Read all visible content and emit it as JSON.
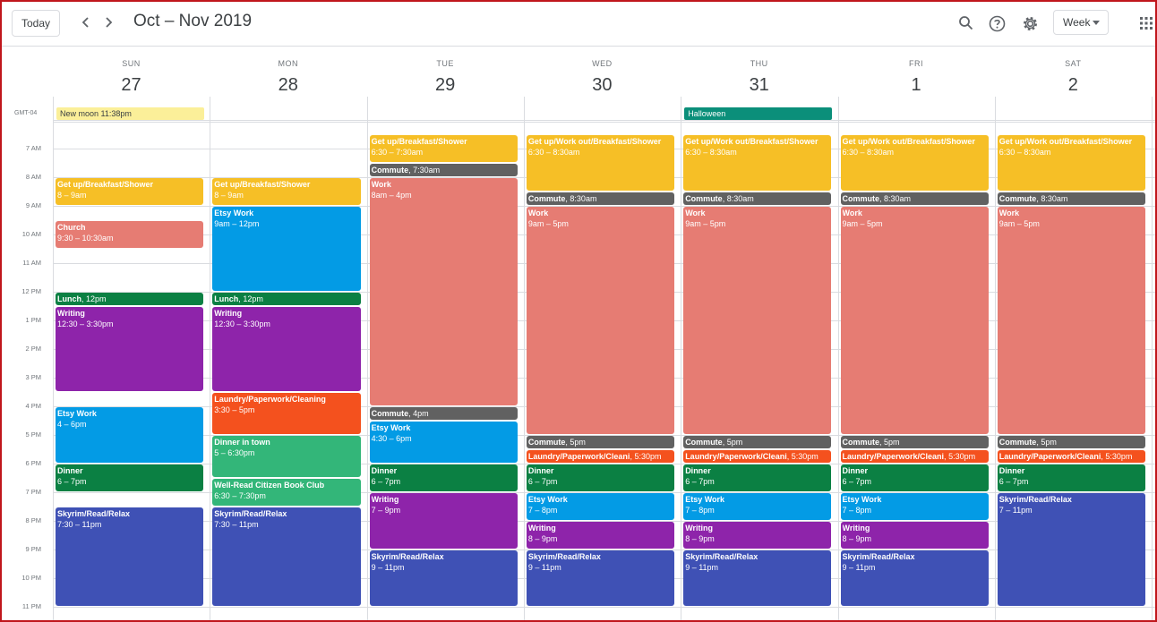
{
  "header": {
    "today_label": "Today",
    "prev_label": "‹",
    "next_label": "›",
    "title": "Oct – Nov 2019",
    "view_label": "Week"
  },
  "colors": {
    "yellow": "#f6bf26",
    "flamingo": "#e67c73",
    "green": "#0b8043",
    "purple": "#8e24aa",
    "blue": "#039be5",
    "tomato": "#f4511e",
    "sage": "#33b679",
    "indigo": "#3f51b5",
    "graphite": "#616161"
  },
  "timezone": "GMT-04",
  "hours": [
    "7 AM",
    "8 AM",
    "9 AM",
    "10 AM",
    "11 AM",
    "12 PM",
    "1 PM",
    "2 PM",
    "3 PM",
    "4 PM",
    "5 PM",
    "6 PM",
    "7 PM",
    "8 PM",
    "9 PM",
    "10 PM",
    "11 PM"
  ],
  "days": [
    {
      "dow": "SUN",
      "date": "27"
    },
    {
      "dow": "MON",
      "date": "28"
    },
    {
      "dow": "TUE",
      "date": "29"
    },
    {
      "dow": "WED",
      "date": "30"
    },
    {
      "dow": "THU",
      "date": "31"
    },
    {
      "dow": "FRI",
      "date": "1"
    },
    {
      "dow": "SAT",
      "date": "2"
    }
  ],
  "allday": [
    {
      "day": 0,
      "title": "New moon 11:38pm",
      "color": "#fbef99",
      "text": "#3c4043"
    },
    {
      "day": 4,
      "title": "Halloween",
      "color": "#0b8f7a",
      "text": "#ffffff"
    }
  ],
  "events": [
    {
      "day": 0,
      "start": 8,
      "end": 9,
      "title": "Get up/Breakfast/Shower",
      "time": "8 – 9am",
      "color": "yellow"
    },
    {
      "day": 0,
      "start": 9.5,
      "end": 10.5,
      "title": "Church",
      "time": "9:30 – 10:30am",
      "color": "flamingo"
    },
    {
      "day": 0,
      "start": 12,
      "end": 12.5,
      "title": "Lunch",
      "time": "12pm",
      "color": "green",
      "inline": true
    },
    {
      "day": 0,
      "start": 12.5,
      "end": 15.5,
      "title": "Writing",
      "time": "12:30 – 3:30pm",
      "color": "purple"
    },
    {
      "day": 0,
      "start": 16,
      "end": 18,
      "title": "Etsy Work",
      "time": "4 – 6pm",
      "color": "blue"
    },
    {
      "day": 0,
      "start": 18,
      "end": 19,
      "title": "Dinner",
      "time": "6 – 7pm",
      "color": "green"
    },
    {
      "day": 0,
      "start": 19.5,
      "end": 23,
      "title": "Skyrim/Read/Relax",
      "time": "7:30 – 11pm",
      "color": "indigo"
    },
    {
      "day": 1,
      "start": 8,
      "end": 9,
      "title": "Get up/Breakfast/Shower",
      "time": "8 – 9am",
      "color": "yellow"
    },
    {
      "day": 1,
      "start": 9,
      "end": 12,
      "title": "Etsy Work",
      "time": "9am – 12pm",
      "color": "blue"
    },
    {
      "day": 1,
      "start": 12,
      "end": 12.5,
      "title": "Lunch",
      "time": "12pm",
      "color": "green",
      "inline": true
    },
    {
      "day": 1,
      "start": 12.5,
      "end": 15.5,
      "title": "Writing",
      "time": "12:30 – 3:30pm",
      "color": "purple"
    },
    {
      "day": 1,
      "start": 15.5,
      "end": 17,
      "title": "Laundry/Paperwork/Cleaning",
      "time": "3:30 – 5pm",
      "color": "tomato"
    },
    {
      "day": 1,
      "start": 17,
      "end": 18.5,
      "title": "Dinner in town",
      "time": "5 – 6:30pm",
      "color": "sage"
    },
    {
      "day": 1,
      "start": 18.5,
      "end": 19.5,
      "title": "Well-Read Citizen Book Club",
      "time": "6:30 – 7:30pm",
      "color": "sage"
    },
    {
      "day": 1,
      "start": 19.5,
      "end": 23,
      "title": "Skyrim/Read/Relax",
      "time": "7:30 – 11pm",
      "color": "indigo"
    },
    {
      "day": 2,
      "start": 6.5,
      "end": 7.5,
      "title": "Get up/Breakfast/Shower",
      "time": "6:30 – 7:30am",
      "color": "yellow"
    },
    {
      "day": 2,
      "start": 7.5,
      "end": 8,
      "title": "Commute",
      "time": "7:30am",
      "color": "graphite",
      "inline": true
    },
    {
      "day": 2,
      "start": 8,
      "end": 16,
      "title": "Work",
      "time": "8am – 4pm",
      "color": "flamingo"
    },
    {
      "day": 2,
      "start": 16,
      "end": 16.5,
      "title": "Commute",
      "time": "4pm",
      "color": "graphite",
      "inline": true
    },
    {
      "day": 2,
      "start": 16.5,
      "end": 18,
      "title": "Etsy Work",
      "time": "4:30 – 6pm",
      "color": "blue"
    },
    {
      "day": 2,
      "start": 18,
      "end": 19,
      "title": "Dinner",
      "time": "6 – 7pm",
      "color": "green"
    },
    {
      "day": 2,
      "start": 19,
      "end": 21,
      "title": "Writing",
      "time": "7 – 9pm",
      "color": "purple"
    },
    {
      "day": 2,
      "start": 21,
      "end": 23,
      "title": "Skyrim/Read/Relax",
      "time": "9 – 11pm",
      "color": "indigo"
    },
    {
      "day": 3,
      "start": 6.5,
      "end": 8.5,
      "title": "Get up/Work out/Breakfast/Shower",
      "time": "6:30 – 8:30am",
      "color": "yellow"
    },
    {
      "day": 3,
      "start": 8.5,
      "end": 9,
      "title": "Commute",
      "time": "8:30am",
      "color": "graphite",
      "inline": true
    },
    {
      "day": 3,
      "start": 9,
      "end": 17,
      "title": "Work",
      "time": "9am – 5pm",
      "color": "flamingo"
    },
    {
      "day": 3,
      "start": 17,
      "end": 17.5,
      "title": "Commute",
      "time": "5pm",
      "color": "graphite",
      "inline": true
    },
    {
      "day": 3,
      "start": 17.5,
      "end": 18,
      "title": "Laundry/Paperwork/Cleani",
      "time": "5:30pm",
      "color": "tomato",
      "inline": true
    },
    {
      "day": 3,
      "start": 18,
      "end": 19,
      "title": "Dinner",
      "time": "6 – 7pm",
      "color": "green"
    },
    {
      "day": 3,
      "start": 19,
      "end": 20,
      "title": "Etsy Work",
      "time": "7 – 8pm",
      "color": "blue"
    },
    {
      "day": 3,
      "start": 20,
      "end": 21,
      "title": "Writing",
      "time": "8 – 9pm",
      "color": "purple"
    },
    {
      "day": 3,
      "start": 21,
      "end": 23,
      "title": "Skyrim/Read/Relax",
      "time": "9 – 11pm",
      "color": "indigo"
    },
    {
      "day": 4,
      "start": 6.5,
      "end": 8.5,
      "title": "Get up/Work out/Breakfast/Shower",
      "time": "6:30 – 8:30am",
      "color": "yellow"
    },
    {
      "day": 4,
      "start": 8.5,
      "end": 9,
      "title": "Commute",
      "time": "8:30am",
      "color": "graphite",
      "inline": true
    },
    {
      "day": 4,
      "start": 9,
      "end": 17,
      "title": "Work",
      "time": "9am – 5pm",
      "color": "flamingo"
    },
    {
      "day": 4,
      "start": 17,
      "end": 17.5,
      "title": "Commute",
      "time": "5pm",
      "color": "graphite",
      "inline": true
    },
    {
      "day": 4,
      "start": 17.5,
      "end": 18,
      "title": "Laundry/Paperwork/Cleani",
      "time": "5:30pm",
      "color": "tomato",
      "inline": true
    },
    {
      "day": 4,
      "start": 18,
      "end": 19,
      "title": "Dinner",
      "time": "6 – 7pm",
      "color": "green"
    },
    {
      "day": 4,
      "start": 19,
      "end": 20,
      "title": "Etsy Work",
      "time": "7 – 8pm",
      "color": "blue"
    },
    {
      "day": 4,
      "start": 20,
      "end": 21,
      "title": "Writing",
      "time": "8 – 9pm",
      "color": "purple"
    },
    {
      "day": 4,
      "start": 21,
      "end": 23,
      "title": "Skyrim/Read/Relax",
      "time": "9 – 11pm",
      "color": "indigo"
    },
    {
      "day": 5,
      "start": 6.5,
      "end": 8.5,
      "title": "Get up/Work out/Breakfast/Shower",
      "time": "6:30 – 8:30am",
      "color": "yellow"
    },
    {
      "day": 5,
      "start": 8.5,
      "end": 9,
      "title": "Commute",
      "time": "8:30am",
      "color": "graphite",
      "inline": true
    },
    {
      "day": 5,
      "start": 9,
      "end": 17,
      "title": "Work",
      "time": "9am – 5pm",
      "color": "flamingo"
    },
    {
      "day": 5,
      "start": 17,
      "end": 17.5,
      "title": "Commute",
      "time": "5pm",
      "color": "graphite",
      "inline": true
    },
    {
      "day": 5,
      "start": 17.5,
      "end": 18,
      "title": "Laundry/Paperwork/Cleani",
      "time": "5:30pm",
      "color": "tomato",
      "inline": true
    },
    {
      "day": 5,
      "start": 18,
      "end": 19,
      "title": "Dinner",
      "time": "6 – 7pm",
      "color": "green"
    },
    {
      "day": 5,
      "start": 19,
      "end": 20,
      "title": "Etsy Work",
      "time": "7 – 8pm",
      "color": "blue"
    },
    {
      "day": 5,
      "start": 20,
      "end": 21,
      "title": "Writing",
      "time": "8 – 9pm",
      "color": "purple"
    },
    {
      "day": 5,
      "start": 21,
      "end": 23,
      "title": "Skyrim/Read/Relax",
      "time": "9 – 11pm",
      "color": "indigo"
    },
    {
      "day": 6,
      "start": 6.5,
      "end": 8.5,
      "title": "Get up/Work out/Breakfast/Shower",
      "time": "6:30 – 8:30am",
      "color": "yellow"
    },
    {
      "day": 6,
      "start": 8.5,
      "end": 9,
      "title": "Commute",
      "time": "8:30am",
      "color": "graphite",
      "inline": true
    },
    {
      "day": 6,
      "start": 9,
      "end": 17,
      "title": "Work",
      "time": "9am – 5pm",
      "color": "flamingo"
    },
    {
      "day": 6,
      "start": 17,
      "end": 17.5,
      "title": "Commute",
      "time": "5pm",
      "color": "graphite",
      "inline": true
    },
    {
      "day": 6,
      "start": 17.5,
      "end": 18,
      "title": "Laundry/Paperwork/Cleani",
      "time": "5:30pm",
      "color": "tomato",
      "inline": true
    },
    {
      "day": 6,
      "start": 18,
      "end": 19,
      "title": "Dinner",
      "time": "6 – 7pm",
      "color": "green"
    },
    {
      "day": 6,
      "start": 19,
      "end": 23,
      "title": "Skyrim/Read/Relax",
      "time": "7 – 11pm",
      "color": "indigo"
    }
  ]
}
